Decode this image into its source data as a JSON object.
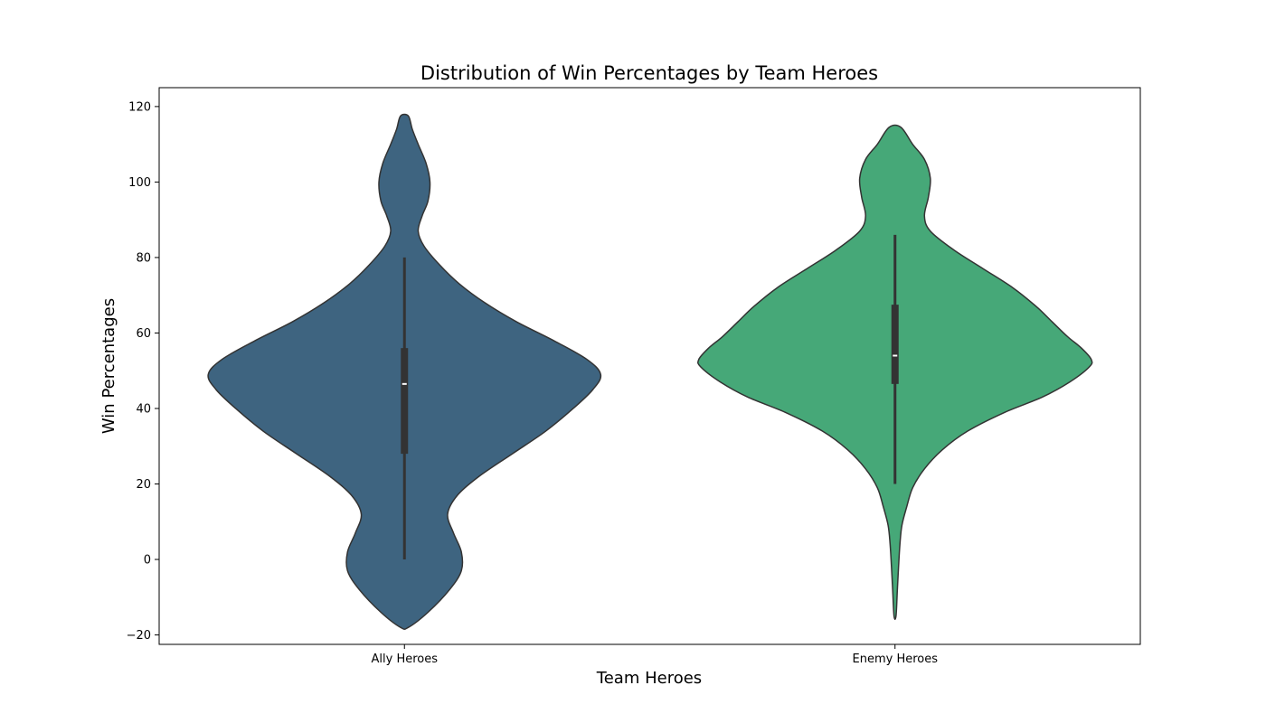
{
  "chart_data": {
    "type": "violin",
    "title": "Distribution of Win Percentages by Team Heroes",
    "xlabel": "Team Heroes",
    "ylabel": "Win Percentages",
    "ylim": [
      -22.5,
      125
    ],
    "yticks": [
      -20,
      0,
      20,
      40,
      60,
      80,
      100,
      120
    ],
    "ytick_labels": [
      "−20",
      "0",
      "20",
      "40",
      "60",
      "80",
      "100",
      "120"
    ],
    "grid": false,
    "categories": [
      "Ally Heroes",
      "Enemy Heroes"
    ],
    "series": [
      {
        "category": "Ally Heroes",
        "color": "#3e6480",
        "range": [
          -18,
          117.5
        ],
        "whisker": [
          0,
          80
        ],
        "quartiles": [
          28,
          56
        ],
        "median": 46.5,
        "density": [
          [
            -18,
            0.02
          ],
          [
            -14,
            0.12
          ],
          [
            -8,
            0.23
          ],
          [
            -3,
            0.29
          ],
          [
            2,
            0.29
          ],
          [
            7,
            0.25
          ],
          [
            12,
            0.22
          ],
          [
            17,
            0.27
          ],
          [
            22,
            0.38
          ],
          [
            28,
            0.55
          ],
          [
            34,
            0.72
          ],
          [
            40,
            0.86
          ],
          [
            45,
            0.96
          ],
          [
            49,
            1.0
          ],
          [
            53,
            0.93
          ],
          [
            58,
            0.76
          ],
          [
            63,
            0.57
          ],
          [
            68,
            0.41
          ],
          [
            73,
            0.28
          ],
          [
            78,
            0.18
          ],
          [
            83,
            0.1
          ],
          [
            87,
            0.07
          ],
          [
            91,
            0.09
          ],
          [
            95,
            0.12
          ],
          [
            100,
            0.13
          ],
          [
            105,
            0.11
          ],
          [
            110,
            0.07
          ],
          [
            114,
            0.04
          ],
          [
            117.5,
            0.02
          ]
        ]
      },
      {
        "category": "Enemy Heroes",
        "color": "#46a878",
        "range": [
          -15,
          114.5
        ],
        "whisker": [
          20,
          86
        ],
        "quartiles": [
          46.5,
          67.5
        ],
        "median": 54,
        "density": [
          [
            -15,
            0.005
          ],
          [
            -8,
            0.012
          ],
          [
            -2,
            0.018
          ],
          [
            4,
            0.025
          ],
          [
            9,
            0.035
          ],
          [
            14,
            0.06
          ],
          [
            19,
            0.09
          ],
          [
            24,
            0.15
          ],
          [
            29,
            0.24
          ],
          [
            34,
            0.37
          ],
          [
            39,
            0.56
          ],
          [
            43,
            0.75
          ],
          [
            47,
            0.89
          ],
          [
            51,
            0.99
          ],
          [
            53,
            1.0
          ],
          [
            56,
            0.95
          ],
          [
            59,
            0.88
          ],
          [
            63,
            0.8
          ],
          [
            67,
            0.72
          ],
          [
            72,
            0.6
          ],
          [
            77,
            0.45
          ],
          [
            82,
            0.3
          ],
          [
            87,
            0.18
          ],
          [
            91,
            0.15
          ],
          [
            96,
            0.17
          ],
          [
            101,
            0.18
          ],
          [
            106,
            0.15
          ],
          [
            110,
            0.09
          ],
          [
            114.5,
            0.03
          ]
        ]
      }
    ]
  }
}
